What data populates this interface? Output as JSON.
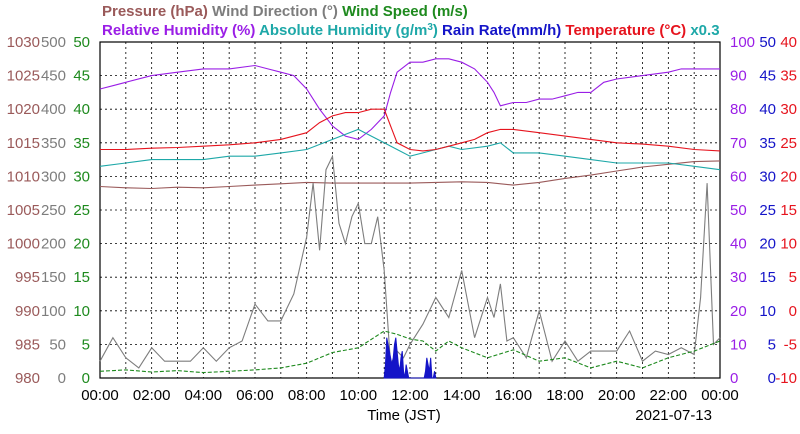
{
  "legend": {
    "row1": [
      {
        "text": "Pressure (hPa)",
        "color": "#9a5a5a"
      },
      {
        "text": "Wind Direction (°)",
        "color": "#7d7d7d"
      },
      {
        "text": "Wind Speed (m/s)",
        "color": "#1e8a1e"
      }
    ],
    "row2": [
      {
        "text": "Relative Humidity (%)",
        "color": "#9a1ee6"
      },
      {
        "text": "Absolute Humidity (g/m",
        "sup": "3",
        "close": ")",
        "color": "#1ea8a8"
      },
      {
        "text": "Rain Rate(mm/h)",
        "color": "#1414c8"
      },
      {
        "text": "Temperature (°C)",
        "color": "#e6141e"
      },
      {
        "text": "x0.3",
        "color": "#1ea8a8"
      }
    ]
  },
  "axes": {
    "pressure": {
      "color": "#9a5a5a",
      "ticks": [
        "1030",
        "1025",
        "1020",
        "1015",
        "1010",
        "1005",
        "1000",
        "995",
        "990",
        "985",
        "980"
      ]
    },
    "wind_direction": {
      "color": "#7d7d7d",
      "ticks": [
        "500",
        "450",
        "400",
        "350",
        "300",
        "250",
        "200",
        "150",
        "100",
        "50",
        "0"
      ]
    },
    "wind_speed": {
      "color": "#1e8a1e",
      "ticks": [
        "50",
        "45",
        "40",
        "35",
        "30",
        "25",
        "20",
        "15",
        "10",
        "5",
        "0"
      ]
    },
    "humidity": {
      "color": "#9a1ee6",
      "ticks": [
        "100",
        "90",
        "80",
        "70",
        "60",
        "50",
        "40",
        "30",
        "20",
        "10",
        "0"
      ]
    },
    "rain": {
      "color": "#1414c8",
      "ticks": [
        "50",
        "45",
        "40",
        "35",
        "30",
        "25",
        "20",
        "15",
        "10",
        "5",
        "0"
      ]
    },
    "temperature": {
      "color": "#e6141e",
      "ticks": [
        "40",
        "35",
        "30",
        "25",
        "20",
        "15",
        "10",
        "5",
        "0",
        "-5",
        "-10"
      ]
    }
  },
  "x_ticks": [
    "00:00",
    "02:00",
    "04:00",
    "06:00",
    "08:00",
    "10:00",
    "12:00",
    "14:00",
    "16:00",
    "18:00",
    "20:00",
    "22:00",
    "00:00"
  ],
  "x_label": "Time (JST)",
  "date": "2021-07-13",
  "chart_data": {
    "type": "line",
    "x_unit": "hour",
    "xlim": [
      0,
      24
    ],
    "series": [
      {
        "name": "Pressure (hPa)",
        "color": "#9a5a5a",
        "axis": "pressure",
        "ylim": [
          980,
          1030
        ],
        "x": [
          0,
          1,
          2,
          3,
          4,
          5,
          6,
          7,
          8,
          9,
          10,
          11,
          12,
          13,
          14,
          15,
          16,
          17,
          18,
          19,
          20,
          21,
          22,
          23,
          24
        ],
        "y": [
          1008.5,
          1008.3,
          1008.2,
          1008.4,
          1008.3,
          1008.5,
          1008.7,
          1008.9,
          1009.1,
          1009.0,
          1009.0,
          1009.0,
          1009.0,
          1009.1,
          1009.2,
          1009.1,
          1008.7,
          1009.1,
          1009.7,
          1010.2,
          1010.8,
          1011.4,
          1011.8,
          1012.2,
          1012.3
        ]
      },
      {
        "name": "Wind Direction (°)",
        "color": "#7d7d7d",
        "axis": "wind_direction",
        "ylim": [
          0,
          500
        ],
        "x": [
          0,
          0.5,
          1,
          1.5,
          2,
          2.5,
          3,
          3.5,
          4,
          4.5,
          5,
          5.5,
          6,
          6.5,
          7,
          7.5,
          8,
          8.25,
          8.5,
          8.75,
          9,
          9.25,
          9.5,
          9.75,
          10,
          10.25,
          10.5,
          10.75,
          11,
          11.25,
          11.5,
          11.75,
          12,
          12.5,
          13,
          13.5,
          14,
          14.5,
          15,
          15.25,
          15.5,
          15.75,
          16,
          16.5,
          17,
          17.5,
          18,
          18.5,
          19,
          19.5,
          20,
          20.5,
          21,
          21.5,
          22,
          22.5,
          23,
          23.25,
          23.5,
          23.75,
          24
        ],
        "y": [
          25,
          60,
          30,
          15,
          45,
          25,
          25,
          25,
          45,
          25,
          45,
          55,
          110,
          85,
          85,
          125,
          210,
          290,
          190,
          310,
          330,
          230,
          200,
          240,
          260,
          200,
          200,
          240,
          160,
          20,
          40,
          30,
          50,
          80,
          120,
          90,
          160,
          60,
          120,
          90,
          140,
          55,
          60,
          30,
          100,
          25,
          55,
          25,
          40,
          40,
          40,
          70,
          25,
          40,
          35,
          45,
          35,
          120,
          290,
          50,
          60
        ]
      },
      {
        "name": "Wind Speed (m/s)",
        "color": "#1e8a1e",
        "axis": "wind_speed",
        "ylim": [
          0,
          50
        ],
        "x": [
          0,
          1,
          2,
          3,
          4,
          5,
          6,
          7,
          8,
          9,
          10,
          11,
          11.5,
          12,
          12.5,
          13,
          13.5,
          14,
          15,
          16,
          17,
          18,
          19,
          20,
          21,
          22,
          23,
          24
        ],
        "y": [
          1.0,
          1.2,
          0.9,
          1.1,
          0.8,
          1.0,
          1.2,
          1.5,
          2.2,
          3.8,
          4.5,
          7.0,
          6.5,
          5.8,
          5.5,
          4.0,
          5.5,
          4.5,
          3.0,
          4.2,
          2.5,
          3.0,
          1.5,
          2.5,
          1.5,
          3.0,
          4.0,
          5.5
        ]
      },
      {
        "name": "Relative Humidity (%)",
        "color": "#9a1ee6",
        "axis": "humidity",
        "ylim": [
          0,
          100
        ],
        "x": [
          0,
          0.5,
          1,
          2,
          3,
          4,
          5,
          6,
          6.5,
          7,
          7.5,
          8,
          8.5,
          9,
          9.5,
          10,
          10.5,
          11,
          11.25,
          11.5,
          12,
          12.5,
          13,
          13.5,
          14,
          14.5,
          15,
          15.25,
          15.5,
          16,
          16.5,
          17,
          17.5,
          18,
          18.5,
          19,
          19.5,
          20,
          21,
          22,
          22.5,
          23,
          24
        ],
        "y": [
          86,
          87,
          88,
          90,
          91,
          92,
          92,
          93,
          92,
          91,
          90,
          86,
          80,
          75,
          72,
          71,
          74,
          78,
          85,
          91,
          94,
          94,
          95,
          95,
          94,
          92,
          88,
          85,
          81,
          82,
          82,
          83,
          83,
          84,
          85,
          85,
          88,
          89,
          90,
          91,
          92,
          92,
          92
        ]
      },
      {
        "name": "Absolute Humidity (g/m3)",
        "color": "#1ea8a8",
        "axis": "wind_speed",
        "ylim": [
          0,
          50
        ],
        "x": [
          0,
          1,
          2,
          3,
          4,
          5,
          6,
          7,
          8,
          9,
          10,
          10.5,
          11,
          11.5,
          12,
          12.5,
          13,
          13.5,
          14,
          15,
          15.5,
          16,
          17,
          18,
          19,
          20,
          21,
          22,
          23,
          24
        ],
        "y": [
          31.5,
          32,
          32.5,
          32.5,
          32.5,
          33,
          33,
          33.5,
          34,
          35.5,
          37,
          36,
          35,
          34,
          33,
          33.5,
          34,
          34.5,
          34,
          34.5,
          35,
          33.5,
          33.5,
          33,
          32.5,
          32,
          32,
          32,
          31.5,
          31
        ]
      },
      {
        "name": "Rain Rate(mm/h)",
        "color": "#1414c8",
        "axis": "rain",
        "ylim": [
          0,
          50
        ],
        "x": [
          11.0,
          11.05,
          11.1,
          11.15,
          11.2,
          11.25,
          11.3,
          11.35,
          11.4,
          11.45,
          11.5,
          11.55,
          11.6,
          11.65,
          11.7,
          11.75,
          11.8,
          11.85,
          11.9,
          11.95,
          12.0,
          12.05,
          12.1,
          12.15,
          12.2,
          12.25,
          12.3,
          12.35,
          12.4,
          12.45,
          12.5,
          12.55,
          12.6,
          12.65,
          12.7,
          12.75,
          12.8,
          12.85,
          12.9,
          12.95,
          13.0
        ],
        "y": [
          0,
          2,
          6,
          5,
          4,
          3,
          2,
          3,
          5,
          6,
          4,
          2,
          1,
          3,
          4,
          1,
          0,
          2,
          1,
          0,
          0,
          0,
          0,
          0,
          0,
          0,
          0,
          0,
          0,
          0,
          0,
          0,
          1,
          3,
          2,
          1,
          3,
          0,
          0,
          1,
          0
        ]
      },
      {
        "name": "Temperature (°C)",
        "color": "#e6141e",
        "axis": "temperature",
        "ylim": [
          -10,
          40
        ],
        "x": [
          0,
          1,
          2,
          3,
          4,
          5,
          6,
          7,
          8,
          8.5,
          9,
          9.5,
          10,
          10.5,
          11,
          11.25,
          11.5,
          12,
          12.5,
          13,
          13.5,
          14,
          14.5,
          15,
          15.5,
          16,
          17,
          18,
          19,
          20,
          21,
          22,
          23,
          24
        ],
        "y": [
          24,
          24,
          24.2,
          24.3,
          24.5,
          24.7,
          25,
          25.5,
          26.5,
          28,
          29,
          29.5,
          29.5,
          30,
          30,
          27.5,
          25,
          24,
          23.8,
          24,
          24.5,
          25,
          25.5,
          26.5,
          27,
          27,
          26.5,
          26,
          25.5,
          25,
          24.8,
          24.5,
          24,
          23.8
        ]
      }
    ]
  }
}
